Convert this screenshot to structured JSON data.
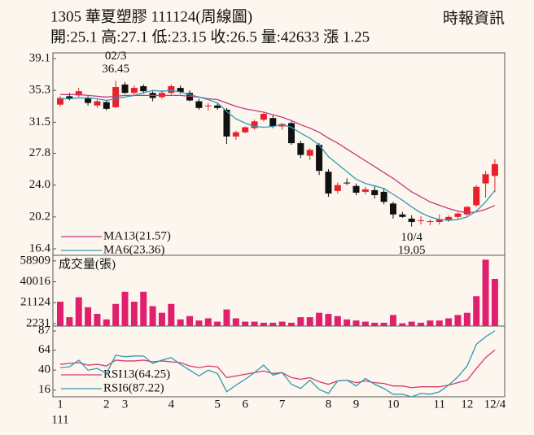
{
  "header": {
    "title": "1305  華夏塑膠 111124(周線圖)",
    "source": "時報資訊",
    "quote": "開:25.1 高:27.1 低:23.15 收:26.5 量:42633 漲 1.25"
  },
  "chart_data": [
    {
      "type": "candlestick",
      "categories": [
        "1",
        null,
        null,
        null,
        null,
        "2",
        null,
        "3",
        null,
        null,
        null,
        null,
        "4",
        null,
        null,
        null,
        null,
        "5",
        null,
        null,
        "6",
        null,
        null,
        null,
        "7",
        null,
        null,
        null,
        null,
        "8",
        null,
        null,
        "9",
        null,
        null,
        null,
        "10",
        null,
        null,
        null,
        null,
        "11",
        null,
        null,
        "12",
        null,
        null,
        "12/4"
      ],
      "x_sublabel": "111",
      "open": [
        33.6,
        34.6,
        34.7,
        34.4,
        33.5,
        33.9,
        33.3,
        36.0,
        35.0,
        35.8,
        35.0,
        34.5,
        35.0,
        35.6,
        35.0,
        34.0,
        33.4,
        33.5,
        33.0,
        29.8,
        30.3,
        30.8,
        31.8,
        32.0,
        31.0,
        31.4,
        29.0,
        27.5,
        28.8,
        25.6,
        23.3,
        24.3,
        23.9,
        23.2,
        23.4,
        23.2,
        21.8,
        20.5,
        20.0,
        19.7,
        19.6,
        19.6,
        19.8,
        20.2,
        20.5,
        21.6,
        24.2,
        25.1
      ],
      "high": [
        34.6,
        35.0,
        35.6,
        34.6,
        34.2,
        34.1,
        36.45,
        36.3,
        35.9,
        36.0,
        35.2,
        35.3,
        36.0,
        35.9,
        35.3,
        34.3,
        33.8,
        33.8,
        33.2,
        30.5,
        31.0,
        31.8,
        32.6,
        32.3,
        31.4,
        31.6,
        29.3,
        28.4,
        29.0,
        25.9,
        24.3,
        24.8,
        24.2,
        23.8,
        23.9,
        23.6,
        22.0,
        20.8,
        20.4,
        20.3,
        19.9,
        20.5,
        20.4,
        20.8,
        21.5,
        24.0,
        25.7,
        27.1
      ],
      "low": [
        33.4,
        34.1,
        34.5,
        33.5,
        33.2,
        32.9,
        33.2,
        34.9,
        34.6,
        34.9,
        34.0,
        34.3,
        34.8,
        34.9,
        34.0,
        33.0,
        32.9,
        33.0,
        28.9,
        29.4,
        30.2,
        30.6,
        31.6,
        30.8,
        30.6,
        28.8,
        27.2,
        27.0,
        25.2,
        22.6,
        23.0,
        24.0,
        22.8,
        22.9,
        22.4,
        21.7,
        20.0,
        20.1,
        19.05,
        19.3,
        19.2,
        19.3,
        19.6,
        20.0,
        20.3,
        21.4,
        22.5,
        23.15
      ],
      "close": [
        34.4,
        34.3,
        35.2,
        33.8,
        34.0,
        33.1,
        35.7,
        35.0,
        35.6,
        35.2,
        34.4,
        35.0,
        35.8,
        35.1,
        34.1,
        33.2,
        33.5,
        33.2,
        29.8,
        30.3,
        30.9,
        31.6,
        32.5,
        31.0,
        31.3,
        29.0,
        27.6,
        28.2,
        25.7,
        23.0,
        24.0,
        24.2,
        23.1,
        23.5,
        22.8,
        22.0,
        20.5,
        20.2,
        19.6,
        19.8,
        19.7,
        19.9,
        20.2,
        20.6,
        21.4,
        23.8,
        25.3,
        26.5
      ],
      "up_color": "#e8202a",
      "down_color": "#111111",
      "series": [
        {
          "name": "MA13(21.57)",
          "color": "#c23a78",
          "values": [
            34.8,
            34.8,
            34.8,
            34.7,
            34.6,
            34.5,
            34.6,
            34.7,
            34.7,
            34.7,
            34.7,
            34.7,
            34.7,
            34.7,
            34.6,
            34.5,
            34.3,
            34.2,
            33.8,
            33.4,
            33.1,
            32.9,
            32.7,
            32.4,
            32.1,
            31.7,
            31.2,
            30.8,
            30.3,
            29.6,
            29.0,
            28.3,
            27.6,
            26.9,
            26.2,
            25.5,
            24.8,
            24.0,
            23.2,
            22.6,
            22.0,
            21.6,
            21.2,
            20.9,
            20.7,
            20.8,
            21.1,
            21.57
          ]
        },
        {
          "name": "MA6(23.36)",
          "color": "#2f9bb0",
          "values": [
            34.3,
            34.3,
            34.4,
            34.4,
            34.3,
            34.1,
            34.3,
            34.5,
            34.7,
            35.0,
            35.3,
            35.2,
            35.3,
            35.1,
            34.8,
            34.5,
            34.2,
            33.8,
            32.8,
            31.9,
            31.4,
            31.0,
            30.9,
            31.0,
            31.2,
            30.9,
            30.2,
            29.6,
            28.8,
            27.4,
            26.5,
            25.6,
            24.7,
            24.2,
            23.9,
            23.6,
            22.9,
            22.2,
            21.4,
            20.7,
            20.2,
            19.9,
            19.8,
            19.9,
            20.2,
            20.9,
            22.0,
            23.36
          ]
        }
      ],
      "annotations": [
        {
          "date": "02/3",
          "value": 36.45,
          "at": "high"
        },
        {
          "date": "10/4",
          "value": 19.05,
          "at": "low"
        }
      ],
      "ylim": [
        16.4,
        39.1
      ],
      "yticks": [
        16.4,
        {
          "value": 20.2,
          "label": "20.2"
        },
        {
          "value": 24,
          "label": "24.0"
        },
        27.8,
        31.5,
        35.3,
        39.1
      ]
    },
    {
      "type": "bar",
      "title": "成交量(張)",
      "color": "#e0206e",
      "values": [
        22000,
        8000,
        26000,
        17000,
        11000,
        6000,
        20000,
        31000,
        22000,
        31000,
        18000,
        12000,
        20000,
        6000,
        9000,
        5000,
        7000,
        4000,
        15000,
        7000,
        4000,
        4000,
        3000,
        3000,
        4000,
        3000,
        8000,
        8000,
        12000,
        11000,
        9000,
        6000,
        5000,
        4000,
        3000,
        3000,
        10000,
        2500,
        4000,
        3000,
        5000,
        5000,
        7000,
        10000,
        12000,
        27000,
        60000,
        42633
      ],
      "ylim": [
        0,
        61000
      ],
      "yticks": [
        2231,
        21124,
        40016,
        58909
      ]
    },
    {
      "type": "line",
      "series": [
        {
          "name": "RSI13(64.25)",
          "color": "#d43a6e",
          "values": [
            47,
            48,
            49,
            46,
            47,
            45,
            52,
            51,
            51,
            52,
            50,
            51,
            50,
            49,
            45,
            43,
            45,
            44,
            31,
            33,
            35,
            37,
            39,
            36,
            37,
            31,
            29,
            31,
            26,
            23,
            27,
            28,
            25,
            27,
            25,
            24,
            21,
            21,
            19,
            20,
            20,
            20,
            22,
            25,
            28,
            42,
            55,
            64.25
          ]
        },
        {
          "name": "RSI6(87.22)",
          "color": "#2f9bb0",
          "values": [
            43,
            44,
            52,
            40,
            42,
            36,
            58,
            56,
            57,
            57,
            48,
            52,
            55,
            47,
            40,
            33,
            40,
            36,
            14,
            22,
            29,
            37,
            46,
            34,
            37,
            23,
            18,
            28,
            17,
            12,
            27,
            28,
            21,
            30,
            23,
            18,
            11,
            11,
            8,
            12,
            11,
            14,
            22,
            32,
            45,
            71,
            80,
            87.22
          ]
        }
      ],
      "ylim": [
        8,
        90
      ],
      "yticks": [
        16,
        40,
        64,
        87
      ]
    }
  ]
}
